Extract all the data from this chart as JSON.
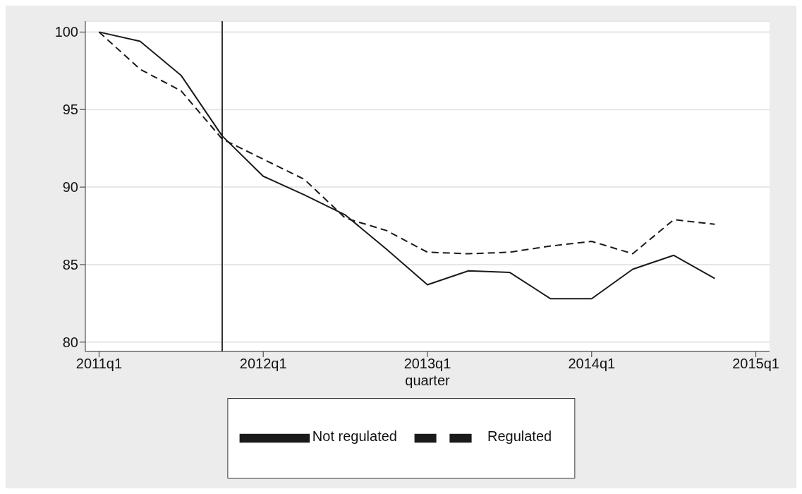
{
  "chart_data": {
    "type": "line",
    "xlabel": "quarter",
    "x": [
      "2011-01",
      "2011-04",
      "2011-07",
      "2011-10",
      "2012-01",
      "2012-04",
      "2012-07",
      "2012-10",
      "2013-01",
      "2013-04",
      "2013-07",
      "2013-10",
      "2014-01",
      "2014-04",
      "2014-07",
      "2014-10"
    ],
    "series": [
      {
        "name": "Not regulated",
        "color": "#1a1a1a",
        "line_style": "solid",
        "values": [
          100,
          99.4,
          97.2,
          93.3,
          90.7,
          89.5,
          88.2,
          86.0,
          83.7,
          84.6,
          84.5,
          82.8,
          82.8,
          84.7,
          85.6,
          84.1
        ]
      },
      {
        "name": "Regulated",
        "color": "#1a1a1a",
        "line_style": "dashed",
        "values": [
          100,
          97.6,
          96.2,
          93.1,
          91.8,
          90.5,
          88.0,
          87.2,
          85.8,
          85.7,
          85.8,
          86.2,
          86.5,
          85.7,
          87.9,
          87.6
        ]
      }
    ],
    "xlim": [
      "2010-12",
      "2015-02"
    ],
    "xticks": [
      {
        "value": "2011-01",
        "label": "2011q1"
      },
      {
        "value": "2012-01",
        "label": "2012q1"
      },
      {
        "value": "2013-01",
        "label": "2013q1"
      },
      {
        "value": "2014-01",
        "label": "2014q1"
      },
      {
        "value": "2015-01",
        "label": "2015q1"
      }
    ],
    "ylim": [
      79.4,
      100.7
    ],
    "yticks": [
      80,
      85,
      90,
      95,
      100
    ],
    "ref_lines": [
      {
        "axis": "x",
        "value": "2011-10",
        "color": "#333333"
      }
    ],
    "grid": "y",
    "legend": "bottom"
  }
}
